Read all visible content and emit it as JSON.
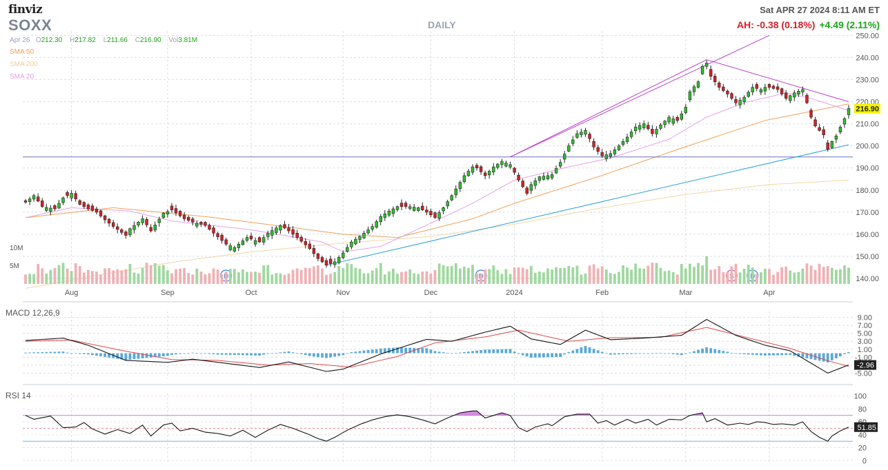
{
  "header": {
    "brand": "finviz",
    "ticker": "SOXX",
    "period": "DAILY",
    "datetime": "Sat APR 27 2024 8:11 AM ET",
    "after_hours": "AH: -0.38 (0.18%)",
    "change": "+4.49 (2.11%)"
  },
  "ohlc": {
    "date": "Apr 26",
    "o_label": "O",
    "o": "212.30",
    "h_label": "H",
    "h": "217.82",
    "l_label": "L",
    "l": "211.66",
    "c_label": "C",
    "c": "216.90",
    "vol_label": "Vol",
    "vol": "3.81M"
  },
  "legend": {
    "sma50": "SMA 50",
    "sma200": "SMA 200",
    "sma20": "SMA 20"
  },
  "colors": {
    "up": "#2fbf2f",
    "down": "#d62128",
    "vol_up": "#9fd89f",
    "vol_down": "#f0b1b4",
    "sma50": "#f0a058",
    "sma200": "#f3d7a3",
    "sma20": "#e6a1e3",
    "trend_upper": "#b83fc9",
    "trend_lower": "#2a9fd6",
    "horizontal": "#6a6fc2",
    "macd": "#111111",
    "signal": "#e04646",
    "hist": "#5aa9d6",
    "rsi": "#111111",
    "last_price_bg": "#f6f300"
  },
  "volume_labels": [
    "10M",
    "5M"
  ],
  "panels": {
    "macd_label": "MACD 12,26,9",
    "rsi_label": "RSI 14"
  },
  "markers": [
    {
      "date": "2023-09-22",
      "label": "D"
    },
    {
      "date": "2023-12-19",
      "label": "D"
    },
    {
      "date": "2024-03-18",
      "label": "S"
    },
    {
      "date": "2024-03-25",
      "label": "D"
    }
  ],
  "chart_data": {
    "type": "candlestick",
    "price_axis": {
      "ticks": [
        140,
        150,
        160,
        170,
        180,
        190,
        200,
        210,
        220,
        230,
        240,
        250
      ],
      "ylim": [
        137.5,
        252
      ]
    },
    "x_labels": [
      {
        "date": "2023-08-01",
        "label": "Aug"
      },
      {
        "date": "2023-09-01",
        "label": "Sep"
      },
      {
        "date": "2023-10-02",
        "label": "Oct"
      },
      {
        "date": "2023-11-01",
        "label": "Nov"
      },
      {
        "date": "2023-12-01",
        "label": "Dec"
      },
      {
        "date": "2024-01-02",
        "label": "2024"
      },
      {
        "date": "2024-02-01",
        "label": "Feb"
      },
      {
        "date": "2024-03-01",
        "label": "Mar"
      },
      {
        "date": "2024-04-01",
        "label": "Apr"
      }
    ],
    "last_price_label": "216.90",
    "price_anchors": [
      [
        "2023-07-17",
        174.5
      ],
      [
        "2023-07-19",
        177.5
      ],
      [
        "2023-07-21",
        172.5
      ],
      [
        "2023-07-26",
        171.5
      ],
      [
        "2023-07-28",
        176.5
      ],
      [
        "2023-08-01",
        178.5
      ],
      [
        "2023-08-03",
        173.5
      ],
      [
        "2023-08-07",
        171.5
      ],
      [
        "2023-08-09",
        170.0
      ],
      [
        "2023-08-11",
        166.5
      ],
      [
        "2023-08-15",
        163.5
      ],
      [
        "2023-08-18",
        159.5
      ],
      [
        "2023-08-21",
        162.5
      ],
      [
        "2023-08-24",
        167.0
      ],
      [
        "2023-08-28",
        161.5
      ],
      [
        "2023-08-31",
        169.5
      ],
      [
        "2023-09-05",
        171.0
      ],
      [
        "2023-09-08",
        167.0
      ],
      [
        "2023-09-12",
        165.5
      ],
      [
        "2023-09-15",
        164.0
      ],
      [
        "2023-09-19",
        160.5
      ],
      [
        "2023-09-22",
        155.5
      ],
      [
        "2023-09-26",
        154.0
      ],
      [
        "2023-09-29",
        158.5
      ],
      [
        "2023-10-04",
        156.5
      ],
      [
        "2023-10-06",
        160.5
      ],
      [
        "2023-10-11",
        164.0
      ],
      [
        "2023-10-13",
        161.5
      ],
      [
        "2023-10-17",
        158.5
      ],
      [
        "2023-10-20",
        153.5
      ],
      [
        "2023-10-24",
        149.0
      ],
      [
        "2023-10-26",
        146.0
      ],
      [
        "2023-10-30",
        147.5
      ],
      [
        "2023-11-01",
        151.5
      ],
      [
        "2023-11-03",
        156.5
      ],
      [
        "2023-11-07",
        159.0
      ],
      [
        "2023-11-10",
        163.5
      ],
      [
        "2023-11-14",
        168.0
      ],
      [
        "2023-11-16",
        170.5
      ],
      [
        "2023-11-20",
        172.5
      ],
      [
        "2023-11-24",
        172.5
      ],
      [
        "2023-11-28",
        172.0
      ],
      [
        "2023-11-30",
        170.0
      ],
      [
        "2023-12-04",
        167.5
      ],
      [
        "2023-12-06",
        172.0
      ],
      [
        "2023-12-08",
        177.5
      ],
      [
        "2023-12-11",
        180.5
      ],
      [
        "2023-12-13",
        186.5
      ],
      [
        "2023-12-15",
        190.5
      ],
      [
        "2023-12-18",
        190.0
      ],
      [
        "2023-12-20",
        186.5
      ],
      [
        "2023-12-22",
        190.5
      ],
      [
        "2023-12-27",
        193.0
      ],
      [
        "2023-12-29",
        191.5
      ],
      [
        "2024-01-03",
        184.5
      ],
      [
        "2024-01-05",
        178.5
      ],
      [
        "2024-01-08",
        182.5
      ],
      [
        "2024-01-10",
        186.0
      ],
      [
        "2024-01-12",
        186.5
      ],
      [
        "2024-01-16",
        187.0
      ],
      [
        "2024-01-18",
        192.5
      ],
      [
        "2024-01-22",
        200.0
      ],
      [
        "2024-01-24",
        205.5
      ],
      [
        "2024-01-26",
        207.0
      ],
      [
        "2024-01-30",
        199.5
      ],
      [
        "2024-02-01",
        195.5
      ],
      [
        "2024-02-05",
        196.5
      ],
      [
        "2024-02-07",
        200.0
      ],
      [
        "2024-02-09",
        204.0
      ],
      [
        "2024-02-13",
        208.5
      ],
      [
        "2024-02-15",
        210.0
      ],
      [
        "2024-02-20",
        205.5
      ],
      [
        "2024-02-22",
        209.5
      ],
      [
        "2024-02-26",
        213.0
      ],
      [
        "2024-02-28",
        211.5
      ],
      [
        "2024-03-01",
        217.5
      ],
      [
        "2024-03-04",
        224.5
      ],
      [
        "2024-03-06",
        229.0
      ],
      [
        "2024-03-07",
        236.0
      ],
      [
        "2024-03-08",
        237.5
      ],
      [
        "2024-03-11",
        231.5
      ],
      [
        "2024-03-13",
        226.5
      ],
      [
        "2024-03-15",
        223.5
      ],
      [
        "2024-03-19",
        219.5
      ],
      [
        "2024-03-21",
        222.0
      ],
      [
        "2024-03-25",
        226.5
      ],
      [
        "2024-03-27",
        225.5
      ],
      [
        "2024-03-28",
        226.5
      ],
      [
        "2024-04-01",
        226.5
      ],
      [
        "2024-04-03",
        225.5
      ],
      [
        "2024-04-05",
        221.5
      ],
      [
        "2024-04-09",
        224.0
      ],
      [
        "2024-04-11",
        225.5
      ],
      [
        "2024-04-12",
        219.5
      ],
      [
        "2024-04-15",
        213.0
      ],
      [
        "2024-04-16",
        209.0
      ],
      [
        "2024-04-18",
        205.0
      ],
      [
        "2024-04-19",
        198.5
      ],
      [
        "2024-04-22",
        202.0
      ],
      [
        "2024-04-23",
        204.5
      ],
      [
        "2024-04-24",
        208.5
      ],
      [
        "2024-04-25",
        212.3
      ],
      [
        "2024-04-26",
        216.9
      ]
    ],
    "sma50_anchors": [
      [
        "2023-07-17",
        167.5
      ],
      [
        "2023-08-15",
        172.0
      ],
      [
        "2023-09-15",
        168.0
      ],
      [
        "2023-10-16",
        163.0
      ],
      [
        "2023-11-01",
        160.0
      ],
      [
        "2023-11-20",
        158.5
      ],
      [
        "2023-12-15",
        167.0
      ],
      [
        "2024-01-02",
        174.0
      ],
      [
        "2024-01-31",
        186.0
      ],
      [
        "2024-02-29",
        199.0
      ],
      [
        "2024-03-28",
        211.5
      ],
      [
        "2024-04-26",
        219.0
      ]
    ],
    "sma200_anchors": [
      [
        "2023-07-17",
        135.5
      ],
      [
        "2023-09-01",
        147.0
      ],
      [
        "2023-10-02",
        152.0
      ],
      [
        "2023-11-01",
        156.0
      ],
      [
        "2023-12-01",
        159.0
      ],
      [
        "2024-01-02",
        164.5
      ],
      [
        "2024-02-01",
        172.0
      ],
      [
        "2024-03-01",
        178.0
      ],
      [
        "2024-04-01",
        182.5
      ],
      [
        "2024-04-26",
        184.5
      ]
    ],
    "sma20_anchors": [
      [
        "2023-07-17",
        167.5
      ],
      [
        "2023-08-01",
        172.0
      ],
      [
        "2023-08-21",
        170.5
      ],
      [
        "2023-09-05",
        166.0
      ],
      [
        "2023-10-02",
        162.0
      ],
      [
        "2023-10-25",
        156.5
      ],
      [
        "2023-11-01",
        152.0
      ],
      [
        "2023-11-14",
        154.5
      ],
      [
        "2023-12-01",
        165.0
      ],
      [
        "2023-12-15",
        174.0
      ],
      [
        "2024-01-02",
        184.5
      ],
      [
        "2024-01-22",
        190.5
      ],
      [
        "2024-02-05",
        194.5
      ],
      [
        "2024-02-26",
        203.0
      ],
      [
        "2024-03-08",
        213.0
      ],
      [
        "2024-03-21",
        219.5
      ],
      [
        "2024-04-05",
        224.0
      ],
      [
        "2024-04-15",
        221.5
      ],
      [
        "2024-04-26",
        216.0
      ]
    ],
    "trend_upper": [
      [
        "2023-12-29",
        195.0
      ],
      [
        "2024-03-08",
        239.0
      ],
      [
        "2024-04-26",
        220.0
      ]
    ],
    "trend_upper_ext": [
      [
        "2023-12-29",
        195.0
      ],
      [
        "2024-03-29",
        250.0
      ]
    ],
    "trend_lower": [
      [
        "2023-10-26",
        146.0
      ],
      [
        "2024-04-26",
        200.5
      ]
    ],
    "horizontal_level": 195.0,
    "volume_axis": {
      "max": 14
    },
    "macd_axis": {
      "ticks": [
        9.0,
        7.0,
        5.0,
        3.0,
        1.0,
        -1.0,
        -3.0,
        -5.0
      ],
      "tick_labels": [
        "9.00",
        "7.00",
        "5.00",
        "3.00",
        "1.00",
        "-1.00",
        "-3.00",
        "-5.00"
      ],
      "ylim": [
        -6.5,
        10.5
      ],
      "last_label": "-2.96"
    },
    "macd_anchors": [
      [
        "2023-07-17",
        3.2
      ],
      [
        "2023-07-28",
        3.8
      ],
      [
        "2023-08-07",
        2.0
      ],
      [
        "2023-08-18",
        -1.8
      ],
      [
        "2023-09-01",
        -2.3
      ],
      [
        "2023-09-12",
        -1.5
      ],
      [
        "2023-09-26",
        -2.8
      ],
      [
        "2023-10-04",
        -3.6
      ],
      [
        "2023-10-13",
        -2.2
      ],
      [
        "2023-10-26",
        -4.6
      ],
      [
        "2023-11-01",
        -4.0
      ],
      [
        "2023-11-14",
        -0.2
      ],
      [
        "2023-11-30",
        3.5
      ],
      [
        "2023-12-08",
        3.0
      ],
      [
        "2023-12-20",
        5.3
      ],
      [
        "2023-12-29",
        6.8
      ],
      [
        "2024-01-08",
        3.6
      ],
      [
        "2024-01-18",
        2.2
      ],
      [
        "2024-01-26",
        5.8
      ],
      [
        "2024-02-05",
        3.4
      ],
      [
        "2024-02-15",
        3.8
      ],
      [
        "2024-02-29",
        4.5
      ],
      [
        "2024-03-08",
        8.5
      ],
      [
        "2024-03-19",
        4.5
      ],
      [
        "2024-03-28",
        2.0
      ],
      [
        "2024-04-08",
        0.6
      ],
      [
        "2024-04-19",
        -5.0
      ],
      [
        "2024-04-26",
        -2.96
      ]
    ],
    "signal_anchors": [
      [
        "2023-07-17",
        3.0
      ],
      [
        "2023-08-01",
        3.3
      ],
      [
        "2023-08-18",
        0.5
      ],
      [
        "2023-09-05",
        -1.6
      ],
      [
        "2023-09-20",
        -1.8
      ],
      [
        "2023-10-06",
        -3.0
      ],
      [
        "2023-10-20",
        -2.6
      ],
      [
        "2023-11-03",
        -3.5
      ],
      [
        "2023-11-20",
        -0.8
      ],
      [
        "2023-12-04",
        2.6
      ],
      [
        "2023-12-20",
        4.1
      ],
      [
        "2024-01-03",
        5.8
      ],
      [
        "2024-01-22",
        3.0
      ],
      [
        "2024-02-05",
        3.9
      ],
      [
        "2024-02-22",
        4.0
      ],
      [
        "2024-03-08",
        6.5
      ],
      [
        "2024-03-25",
        3.6
      ],
      [
        "2024-04-08",
        1.2
      ],
      [
        "2024-04-19",
        -1.9
      ],
      [
        "2024-04-26",
        -3.3
      ]
    ],
    "rsi_axis": {
      "ticks": [
        100,
        80,
        60,
        40,
        20,
        0
      ],
      "ylim": [
        -4,
        104
      ],
      "upper": 70,
      "lower": 30,
      "mid": 50,
      "last_label": "51.85",
      "extra_ticks": [
        60
      ]
    },
    "rsi_anchors": [
      [
        "2023-07-17",
        70
      ],
      [
        "2023-07-19",
        64
      ],
      [
        "2023-07-25",
        69
      ],
      [
        "2023-07-28",
        51
      ],
      [
        "2023-08-02",
        52
      ],
      [
        "2023-08-04",
        59
      ],
      [
        "2023-08-08",
        49
      ],
      [
        "2023-08-11",
        41
      ],
      [
        "2023-08-16",
        48
      ],
      [
        "2023-08-21",
        42
      ],
      [
        "2023-08-24",
        55
      ],
      [
        "2023-08-28",
        38
      ],
      [
        "2023-08-31",
        55
      ],
      [
        "2023-09-05",
        58
      ],
      [
        "2023-09-07",
        46
      ],
      [
        "2023-09-12",
        50
      ],
      [
        "2023-09-15",
        44
      ],
      [
        "2023-09-20",
        42
      ],
      [
        "2023-09-25",
        38
      ],
      [
        "2023-09-28",
        47
      ],
      [
        "2023-10-03",
        36
      ],
      [
        "2023-10-06",
        47
      ],
      [
        "2023-10-11",
        56
      ],
      [
        "2023-10-16",
        50
      ],
      [
        "2023-10-20",
        40
      ],
      [
        "2023-10-24",
        34
      ],
      [
        "2023-10-26",
        30
      ],
      [
        "2023-10-30",
        36
      ],
      [
        "2023-11-02",
        47
      ],
      [
        "2023-11-07",
        56
      ],
      [
        "2023-11-10",
        63
      ],
      [
        "2023-11-15",
        68
      ],
      [
        "2023-11-20",
        71
      ],
      [
        "2023-11-24",
        68
      ],
      [
        "2023-11-29",
        63
      ],
      [
        "2023-12-04",
        57
      ],
      [
        "2023-12-07",
        66
      ],
      [
        "2023-12-12",
        74
      ],
      [
        "2023-12-15",
        77
      ],
      [
        "2023-12-18",
        77
      ],
      [
        "2023-12-20",
        66
      ],
      [
        "2023-12-27",
        74
      ],
      [
        "2023-12-29",
        70
      ],
      [
        "2024-01-03",
        51
      ],
      [
        "2024-01-05",
        45
      ],
      [
        "2024-01-09",
        52
      ],
      [
        "2024-01-12",
        57
      ],
      [
        "2024-01-16",
        54
      ],
      [
        "2024-01-19",
        68
      ],
      [
        "2024-01-24",
        72
      ],
      [
        "2024-01-29",
        72
      ],
      [
        "2024-01-31",
        58
      ],
      [
        "2024-02-02",
        62
      ],
      [
        "2024-02-06",
        55
      ],
      [
        "2024-02-09",
        64
      ],
      [
        "2024-02-13",
        58
      ],
      [
        "2024-02-16",
        64
      ],
      [
        "2024-02-21",
        55
      ],
      [
        "2024-02-26",
        64
      ],
      [
        "2024-02-29",
        63
      ],
      [
        "2024-03-04",
        70
      ],
      [
        "2024-03-07",
        74
      ],
      [
        "2024-03-08",
        60
      ],
      [
        "2024-03-12",
        65
      ],
      [
        "2024-03-15",
        55
      ],
      [
        "2024-03-20",
        58
      ],
      [
        "2024-03-22",
        56
      ],
      [
        "2024-03-26",
        60
      ],
      [
        "2024-03-28",
        59
      ],
      [
        "2024-04-02",
        56
      ],
      [
        "2024-04-04",
        57
      ],
      [
        "2024-04-09",
        55
      ],
      [
        "2024-04-11",
        60
      ],
      [
        "2024-04-15",
        45
      ],
      [
        "2024-04-17",
        36
      ],
      [
        "2024-04-19",
        30
      ],
      [
        "2024-04-22",
        38
      ],
      [
        "2024-04-24",
        46
      ],
      [
        "2024-04-26",
        51.85
      ]
    ]
  }
}
